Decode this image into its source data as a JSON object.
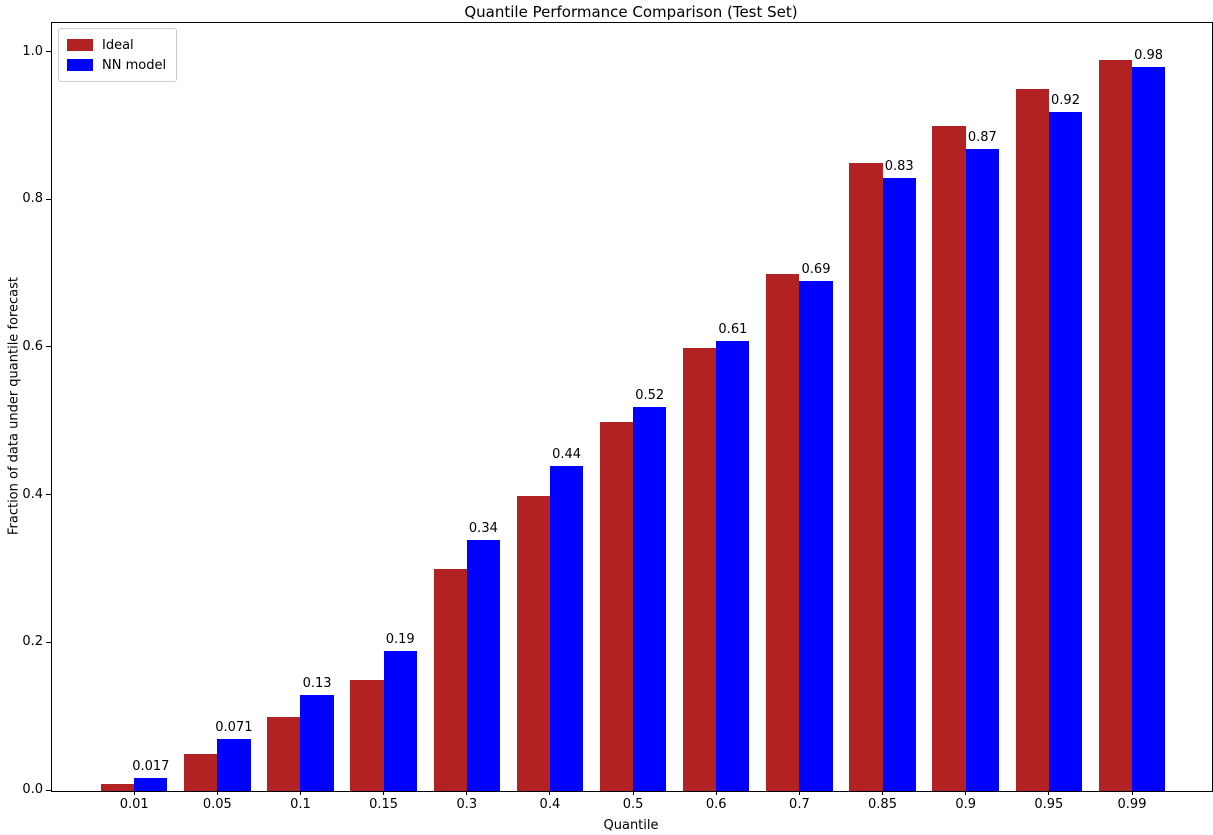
{
  "figure": {
    "title": "Quantile Performance Comparison (Test Set)",
    "xlabel": "Quantile",
    "ylabel": "Fraction of data under quantile forecast"
  },
  "legend": {
    "position": "upper left",
    "items": [
      {
        "label": "Ideal",
        "color": "#b22222"
      },
      {
        "label": "NN model",
        "color": "#0000ff"
      }
    ]
  },
  "chart_data": {
    "type": "bar",
    "title": "Quantile Performance Comparison (Test Set)",
    "xlabel": "Quantile",
    "ylabel": "Fraction of data under quantile forecast",
    "categories": [
      "0.01",
      "0.05",
      "0.1",
      "0.15",
      "0.3",
      "0.4",
      "0.5",
      "0.6",
      "0.7",
      "0.85",
      "0.9",
      "0.95",
      "0.99"
    ],
    "series": [
      {
        "name": "Ideal",
        "color": "#b22222",
        "values": [
          0.01,
          0.05,
          0.1,
          0.15,
          0.3,
          0.4,
          0.5,
          0.6,
          0.7,
          0.85,
          0.9,
          0.95,
          0.99
        ]
      },
      {
        "name": "NN model",
        "color": "#0000ff",
        "values": [
          0.017,
          0.071,
          0.13,
          0.19,
          0.34,
          0.44,
          0.52,
          0.61,
          0.69,
          0.83,
          0.87,
          0.92,
          0.98
        ],
        "labels": [
          "0.017",
          "0.071",
          "0.13",
          "0.19",
          "0.34",
          "0.44",
          "0.52",
          "0.61",
          "0.69",
          "0.83",
          "0.87",
          "0.92",
          "0.98"
        ]
      }
    ],
    "bar_width": 0.4,
    "yticks": [
      0.0,
      0.2,
      0.4,
      0.6,
      0.8,
      1.0
    ],
    "ytick_labels": [
      "0.0",
      "0.2",
      "0.4",
      "0.6",
      "0.8",
      "1.0"
    ],
    "ylim": [
      0,
      1.04
    ],
    "grid": false,
    "legend_position": "upper left"
  }
}
